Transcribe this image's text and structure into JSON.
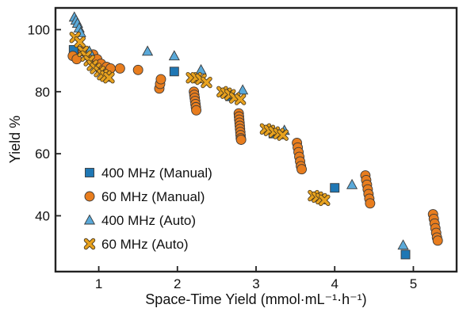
{
  "chart_data": {
    "type": "scatter",
    "title": "",
    "xlabel": "Space-Time Yield (mmol·mL⁻¹·h⁻¹)",
    "ylabel": "Yield %",
    "xlim": [
      0.45,
      5.55
    ],
    "ylim": [
      22,
      107
    ],
    "xticks": [
      "1",
      "2",
      "3",
      "4",
      "5"
    ],
    "xtick_values": [
      1,
      2,
      3,
      4,
      5
    ],
    "yticks": [
      "40",
      "60",
      "80",
      "100"
    ],
    "ytick_values": [
      40,
      60,
      80,
      100
    ],
    "grid": false,
    "legend_position": "lower-left",
    "series": [
      {
        "name": "400 MHz (Manual)",
        "marker": "square",
        "color": "#1f77b4",
        "points": [
          [
            0.68,
            93.5
          ],
          [
            1.96,
            86.5
          ],
          [
            2.67,
            78.5
          ],
          [
            3.22,
            66.5
          ],
          [
            4.0,
            49.0
          ],
          [
            4.9,
            27.5
          ]
        ]
      },
      {
        "name": "60 MHz (Manual)",
        "marker": "circle",
        "color": "#e87d1e",
        "points": [
          [
            0.67,
            91.5
          ],
          [
            0.72,
            90.5
          ],
          [
            0.8,
            93.0
          ],
          [
            0.87,
            91.5
          ],
          [
            0.93,
            92.0
          ],
          [
            0.98,
            90.5
          ],
          [
            1.03,
            89.0
          ],
          [
            1.1,
            88.0
          ],
          [
            1.15,
            87.5
          ],
          [
            1.27,
            87.5
          ],
          [
            1.5,
            87.0
          ],
          [
            1.77,
            81.0
          ],
          [
            1.78,
            82.5
          ],
          [
            1.79,
            84.0
          ],
          [
            2.21,
            80.0
          ],
          [
            2.215,
            79.0
          ],
          [
            2.22,
            78.0
          ],
          [
            2.225,
            77.0
          ],
          [
            2.23,
            76.0
          ],
          [
            2.235,
            75.0
          ],
          [
            2.24,
            74.0
          ],
          [
            2.78,
            73.0
          ],
          [
            2.783,
            72.0
          ],
          [
            2.786,
            71.0
          ],
          [
            2.79,
            70.0
          ],
          [
            2.793,
            69.0
          ],
          [
            2.796,
            68.0
          ],
          [
            2.8,
            67.0
          ],
          [
            2.803,
            66.0
          ],
          [
            2.806,
            65.0
          ],
          [
            2.81,
            64.5
          ],
          [
            3.52,
            63.5
          ],
          [
            3.53,
            62.0
          ],
          [
            3.54,
            60.5
          ],
          [
            3.55,
            59.0
          ],
          [
            3.56,
            57.5
          ],
          [
            3.57,
            56.0
          ],
          [
            3.58,
            55.0
          ],
          [
            4.39,
            53.0
          ],
          [
            4.4,
            51.5
          ],
          [
            4.41,
            50.0
          ],
          [
            4.42,
            48.5
          ],
          [
            4.43,
            47.0
          ],
          [
            4.44,
            45.5
          ],
          [
            4.45,
            44.0
          ],
          [
            5.25,
            40.5
          ],
          [
            5.26,
            39.0
          ],
          [
            5.27,
            37.5
          ],
          [
            5.28,
            36.0
          ],
          [
            5.29,
            34.5
          ],
          [
            5.3,
            33.0
          ],
          [
            5.31,
            32.0
          ]
        ]
      },
      {
        "name": "400 MHz (Auto)",
        "marker": "triangle",
        "color": "#5aa9d9",
        "points": [
          [
            0.69,
            104.0
          ],
          [
            0.71,
            103.0
          ],
          [
            0.73,
            102.0
          ],
          [
            0.75,
            100.5
          ],
          [
            0.77,
            99.0
          ],
          [
            0.88,
            93.0
          ],
          [
            1.62,
            93.0
          ],
          [
            1.96,
            91.5
          ],
          [
            2.3,
            87.0
          ],
          [
            2.83,
            80.5
          ],
          [
            3.36,
            67.5
          ],
          [
            4.22,
            50.0
          ],
          [
            4.87,
            30.5
          ]
        ]
      },
      {
        "name": "60 MHz (Auto)",
        "marker": "cross",
        "color": "#e8a21e",
        "points": [
          [
            0.7,
            97.5
          ],
          [
            0.76,
            96.0
          ],
          [
            0.8,
            93.0
          ],
          [
            0.84,
            91.5
          ],
          [
            0.88,
            90.0
          ],
          [
            0.92,
            88.5
          ],
          [
            0.96,
            87.5
          ],
          [
            1.01,
            86.5
          ],
          [
            1.05,
            85.5
          ],
          [
            1.09,
            85.0
          ],
          [
            1.13,
            84.5
          ],
          [
            2.18,
            84.5
          ],
          [
            2.24,
            84.5
          ],
          [
            2.3,
            84.0
          ],
          [
            2.37,
            83.0
          ],
          [
            2.57,
            80.0
          ],
          [
            2.62,
            79.5
          ],
          [
            2.67,
            79.0
          ],
          [
            2.73,
            78.0
          ],
          [
            2.8,
            77.5
          ],
          [
            3.12,
            68.0
          ],
          [
            3.17,
            67.5
          ],
          [
            3.23,
            67.0
          ],
          [
            3.29,
            66.5
          ],
          [
            3.34,
            66.0
          ],
          [
            3.73,
            46.5
          ],
          [
            3.78,
            46.0
          ],
          [
            3.83,
            45.5
          ],
          [
            3.87,
            45.0
          ]
        ]
      }
    ]
  }
}
